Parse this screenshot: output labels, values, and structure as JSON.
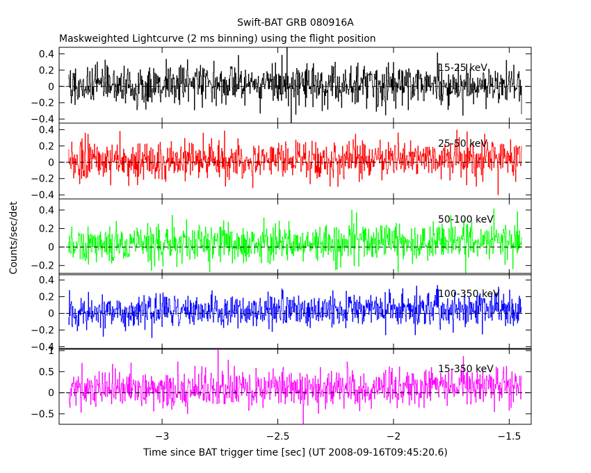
{
  "title": "Swift-BAT GRB 080916A",
  "subtitle": "Maskweighted Lightcurve (2 ms binning) using the flight position",
  "chart_data": {
    "type": "line",
    "title": "Swift-BAT GRB 080916A",
    "subtitle": "Maskweighted Lightcurve (2 ms binning) using the flight position",
    "xlabel": "Time since BAT trigger time [sec] (UT 2008-09-16T09:45:20.6)",
    "ylabel": "Counts/sec/det",
    "xlim": [
      -3.445,
      -1.405
    ],
    "xticks": [
      -3,
      -2.5,
      -2,
      -1.5
    ],
    "xtick_labels": [
      "−3",
      "−2.5",
      "−2",
      "−1.5"
    ],
    "data_range": [
      -3.405,
      -1.445
    ],
    "bin_width": 0.002,
    "grid": false,
    "zero_line": "dashed",
    "panels": [
      {
        "name": "15-25 keV",
        "color": "#000000",
        "ylim": [
          -0.45,
          0.48
        ],
        "yticks": [
          -0.4,
          -0.2,
          0,
          0.2,
          0.4
        ],
        "ytick_labels": [
          "−0.4",
          "−0.2",
          "0",
          "0.2",
          "0.4"
        ],
        "mean": 0.02,
        "sigma": 0.13,
        "trend": 0.0
      },
      {
        "name": "25-50 keV",
        "color": "#ff0000",
        "ylim": [
          -0.45,
          0.48
        ],
        "yticks": [
          -0.4,
          -0.2,
          0,
          0.2,
          0.4
        ],
        "ytick_labels": [
          "−0.4",
          "−0.2",
          "0",
          "0.2",
          "0.4"
        ],
        "mean": 0.01,
        "sigma": 0.12,
        "trend": 0.04
      },
      {
        "name": "50-100 keV",
        "color": "#00ff00",
        "ylim": [
          -0.3,
          0.52
        ],
        "yticks": [
          -0.2,
          0,
          0.2,
          0.4
        ],
        "ytick_labels": [
          "−0.2",
          "0",
          "0.2",
          "0.4"
        ],
        "mean": 0.02,
        "sigma": 0.1,
        "trend": 0.05
      },
      {
        "name": "100-350 keV",
        "color": "#0000ff",
        "ylim": [
          -0.43,
          0.48
        ],
        "yticks": [
          -0.4,
          -0.2,
          0,
          0.2,
          0.4
        ],
        "ytick_labels": [
          "−0.4",
          "−0.2",
          "0",
          "0.2",
          "0.4"
        ],
        "mean": 0.01,
        "sigma": 0.1,
        "trend": 0.05
      },
      {
        "name": "15-350 keV",
        "color": "#ff00ff",
        "ylim": [
          -0.75,
          1.05
        ],
        "yticks": [
          -0.5,
          0,
          0.5,
          1
        ],
        "ytick_labels": [
          "−0.5",
          "0",
          "0.5",
          "1"
        ],
        "mean": 0.05,
        "sigma": 0.22,
        "trend": 0.12
      }
    ]
  }
}
